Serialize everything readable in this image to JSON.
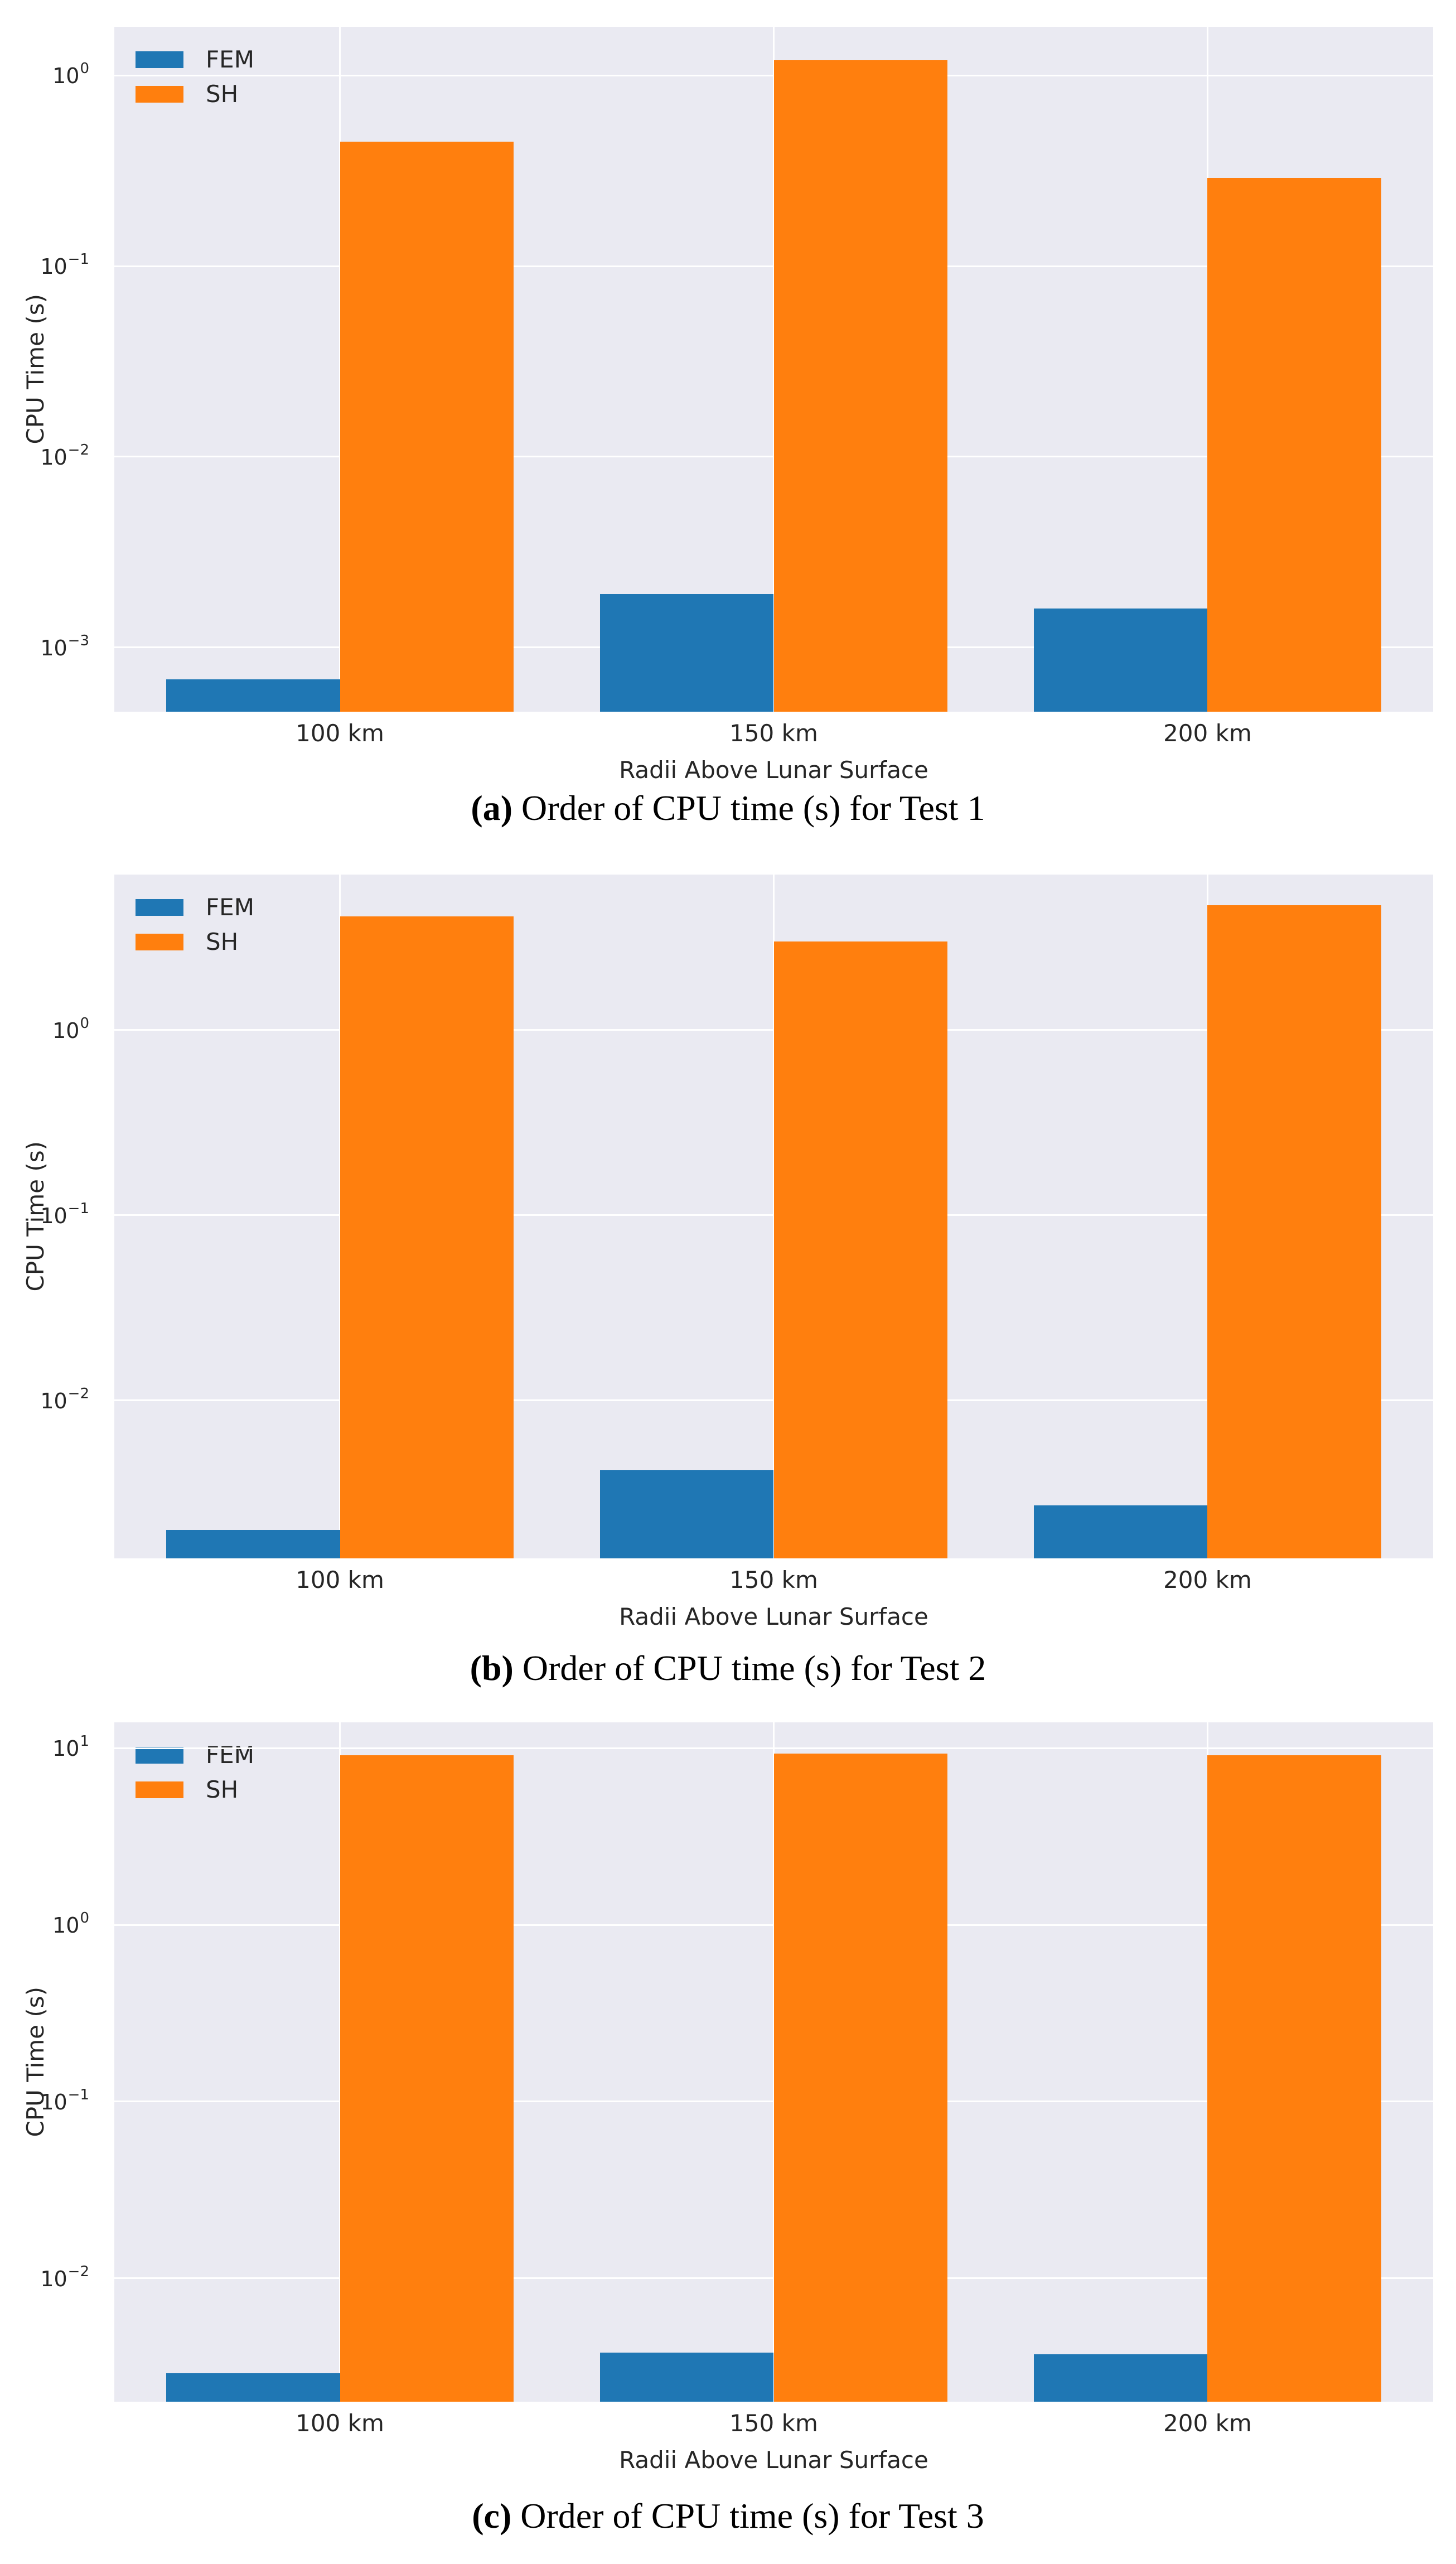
{
  "style": {
    "plot_background": "#eaeaf2",
    "gridline_color": "#ffffff",
    "tick_text_color": "#262626",
    "fem_color": "#1f77b4",
    "sh_color": "#ff7f0e"
  },
  "chart_data": [
    {
      "type": "bar",
      "caption_label": "(a)",
      "caption_text": "Order of CPU time (s) for Test 1",
      "categories": [
        "100 km",
        "150 km",
        "200 km"
      ],
      "series": [
        {
          "name": "FEM",
          "color": "#1f77b4",
          "values": [
            0.00068,
            0.0019,
            0.0016
          ]
        },
        {
          "name": "SH",
          "color": "#ff7f0e",
          "values": [
            0.45,
            1.2,
            0.29
          ]
        }
      ],
      "xlabel": "Radii Above Lunar Surface",
      "ylabel": "CPU Time (s)",
      "yscale": "log",
      "ylim": [
        0.00046,
        1.8
      ],
      "ytick_exponents": [
        0,
        -1,
        -2,
        -3
      ],
      "xlim": [
        -0.52,
        2.52
      ],
      "bar_width": 0.4,
      "grid": true,
      "legend": {
        "position": "upper-left",
        "entries": [
          "FEM",
          "SH"
        ]
      }
    },
    {
      "type": "bar",
      "caption_label": "(b)",
      "caption_text": "Order of CPU time (s) for Test 2",
      "categories": [
        "100 km",
        "150 km",
        "200 km"
      ],
      "series": [
        {
          "name": "FEM",
          "color": "#1f77b4",
          "values": [
            0.002,
            0.0042,
            0.0027
          ]
        },
        {
          "name": "SH",
          "color": "#ff7f0e",
          "values": [
            4.1,
            3.0,
            4.7
          ]
        }
      ],
      "xlabel": "Radii Above Lunar Surface",
      "ylabel": "CPU Time (s)",
      "yscale": "log",
      "ylim": [
        0.0014,
        6.9
      ],
      "ytick_exponents": [
        0,
        -1,
        -2
      ],
      "xlim": [
        -0.52,
        2.52
      ],
      "bar_width": 0.4,
      "grid": true,
      "legend": {
        "position": "upper-left",
        "entries": [
          "FEM",
          "SH"
        ]
      }
    },
    {
      "type": "bar",
      "caption_label": "(c)",
      "caption_text": "Order of CPU time (s) for Test 3",
      "categories": [
        "100 km",
        "150 km",
        "200 km"
      ],
      "series": [
        {
          "name": "FEM",
          "color": "#1f77b4",
          "values": [
            0.0029,
            0.0038,
            0.0037
          ]
        },
        {
          "name": "SH",
          "color": "#ff7f0e",
          "values": [
            9.1,
            9.3,
            9.1
          ]
        }
      ],
      "xlabel": "Radii Above Lunar Surface",
      "ylabel": "CPU Time (s)",
      "yscale": "log",
      "ylim": [
        0.002,
        14.0
      ],
      "ytick_exponents": [
        1,
        0,
        -1,
        -2
      ],
      "xlim": [
        -0.52,
        2.52
      ],
      "bar_width": 0.4,
      "grid": true,
      "legend": {
        "position": "upper-left",
        "entries": [
          "FEM",
          "SH"
        ]
      }
    }
  ]
}
